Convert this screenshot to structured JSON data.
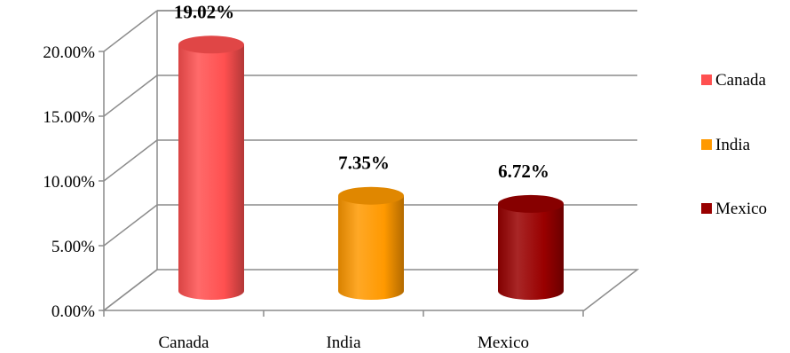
{
  "chart_data": {
    "type": "bar",
    "style": "3d-cylinder",
    "categories": [
      "Canada",
      "India",
      "Mexico"
    ],
    "series": [
      {
        "name": "Canada",
        "color": "#ff5050",
        "values": [
          19.02,
          null,
          null
        ]
      },
      {
        "name": "India",
        "color": "#ff9900",
        "values": [
          null,
          7.35,
          null
        ]
      },
      {
        "name": "Mexico",
        "color": "#990000",
        "values": [
          null,
          null,
          6.72
        ]
      }
    ],
    "values": [
      19.02,
      7.35,
      6.72
    ],
    "data_labels": [
      "19.02%",
      "7.35%",
      "6.72%"
    ],
    "y_tick_labels": [
      "0.00%",
      "5.00%",
      "10.00%",
      "15.00%",
      "20.00%"
    ],
    "ylim": [
      0,
      20
    ],
    "grid": true,
    "legend_position": "right",
    "title": "",
    "xlabel": "",
    "ylabel": ""
  }
}
